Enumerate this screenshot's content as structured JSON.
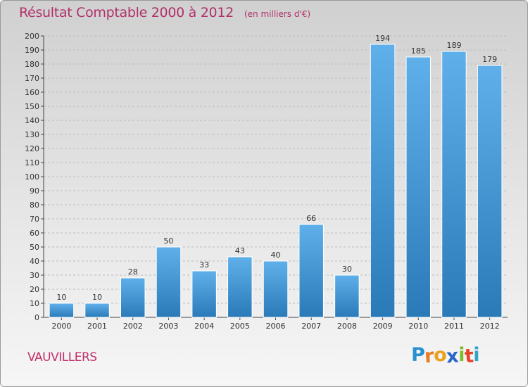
{
  "title": "Résultat Comptable 2000 à 2012",
  "subtitle": "(en milliers d'€)",
  "city": "VAUVILLERS",
  "logo": {
    "text": "Proxiti",
    "letters": [
      "P",
      "r",
      "o",
      "x",
      "i",
      "t",
      "i"
    ],
    "colors": [
      "#2a8fd0",
      "#e87a1f",
      "#e8a21f",
      "#2a64c8",
      "#7bbf2a",
      "#e8412a",
      "#2aa6c8"
    ]
  },
  "colors": {
    "title": "#b0306a",
    "bar_top": "#5fb0ea",
    "bar_bottom": "#2a7ab8",
    "axis": "#444444",
    "grid": "#bdbdbd"
  },
  "chart_data": {
    "type": "bar",
    "categories": [
      "2000",
      "2001",
      "2002",
      "2003",
      "2004",
      "2005",
      "2006",
      "2007",
      "2008",
      "2009",
      "2010",
      "2011",
      "2012"
    ],
    "values": [
      10,
      10,
      28,
      50,
      33,
      43,
      40,
      66,
      30,
      194,
      185,
      189,
      179
    ],
    "data_labels": [
      "10",
      "10",
      "28",
      "50",
      "33",
      "43",
      "40",
      "66",
      "30",
      "194",
      "185",
      "189",
      "179"
    ],
    "ylim": [
      0,
      200
    ],
    "yticks": [
      "0",
      "10",
      "20",
      "30",
      "40",
      "50",
      "60",
      "70",
      "80",
      "90",
      "100",
      "110",
      "120",
      "130",
      "140",
      "150",
      "160",
      "170",
      "180",
      "190",
      "200"
    ],
    "xlabel": "",
    "ylabel": "",
    "grid": true,
    "legend": "none"
  }
}
